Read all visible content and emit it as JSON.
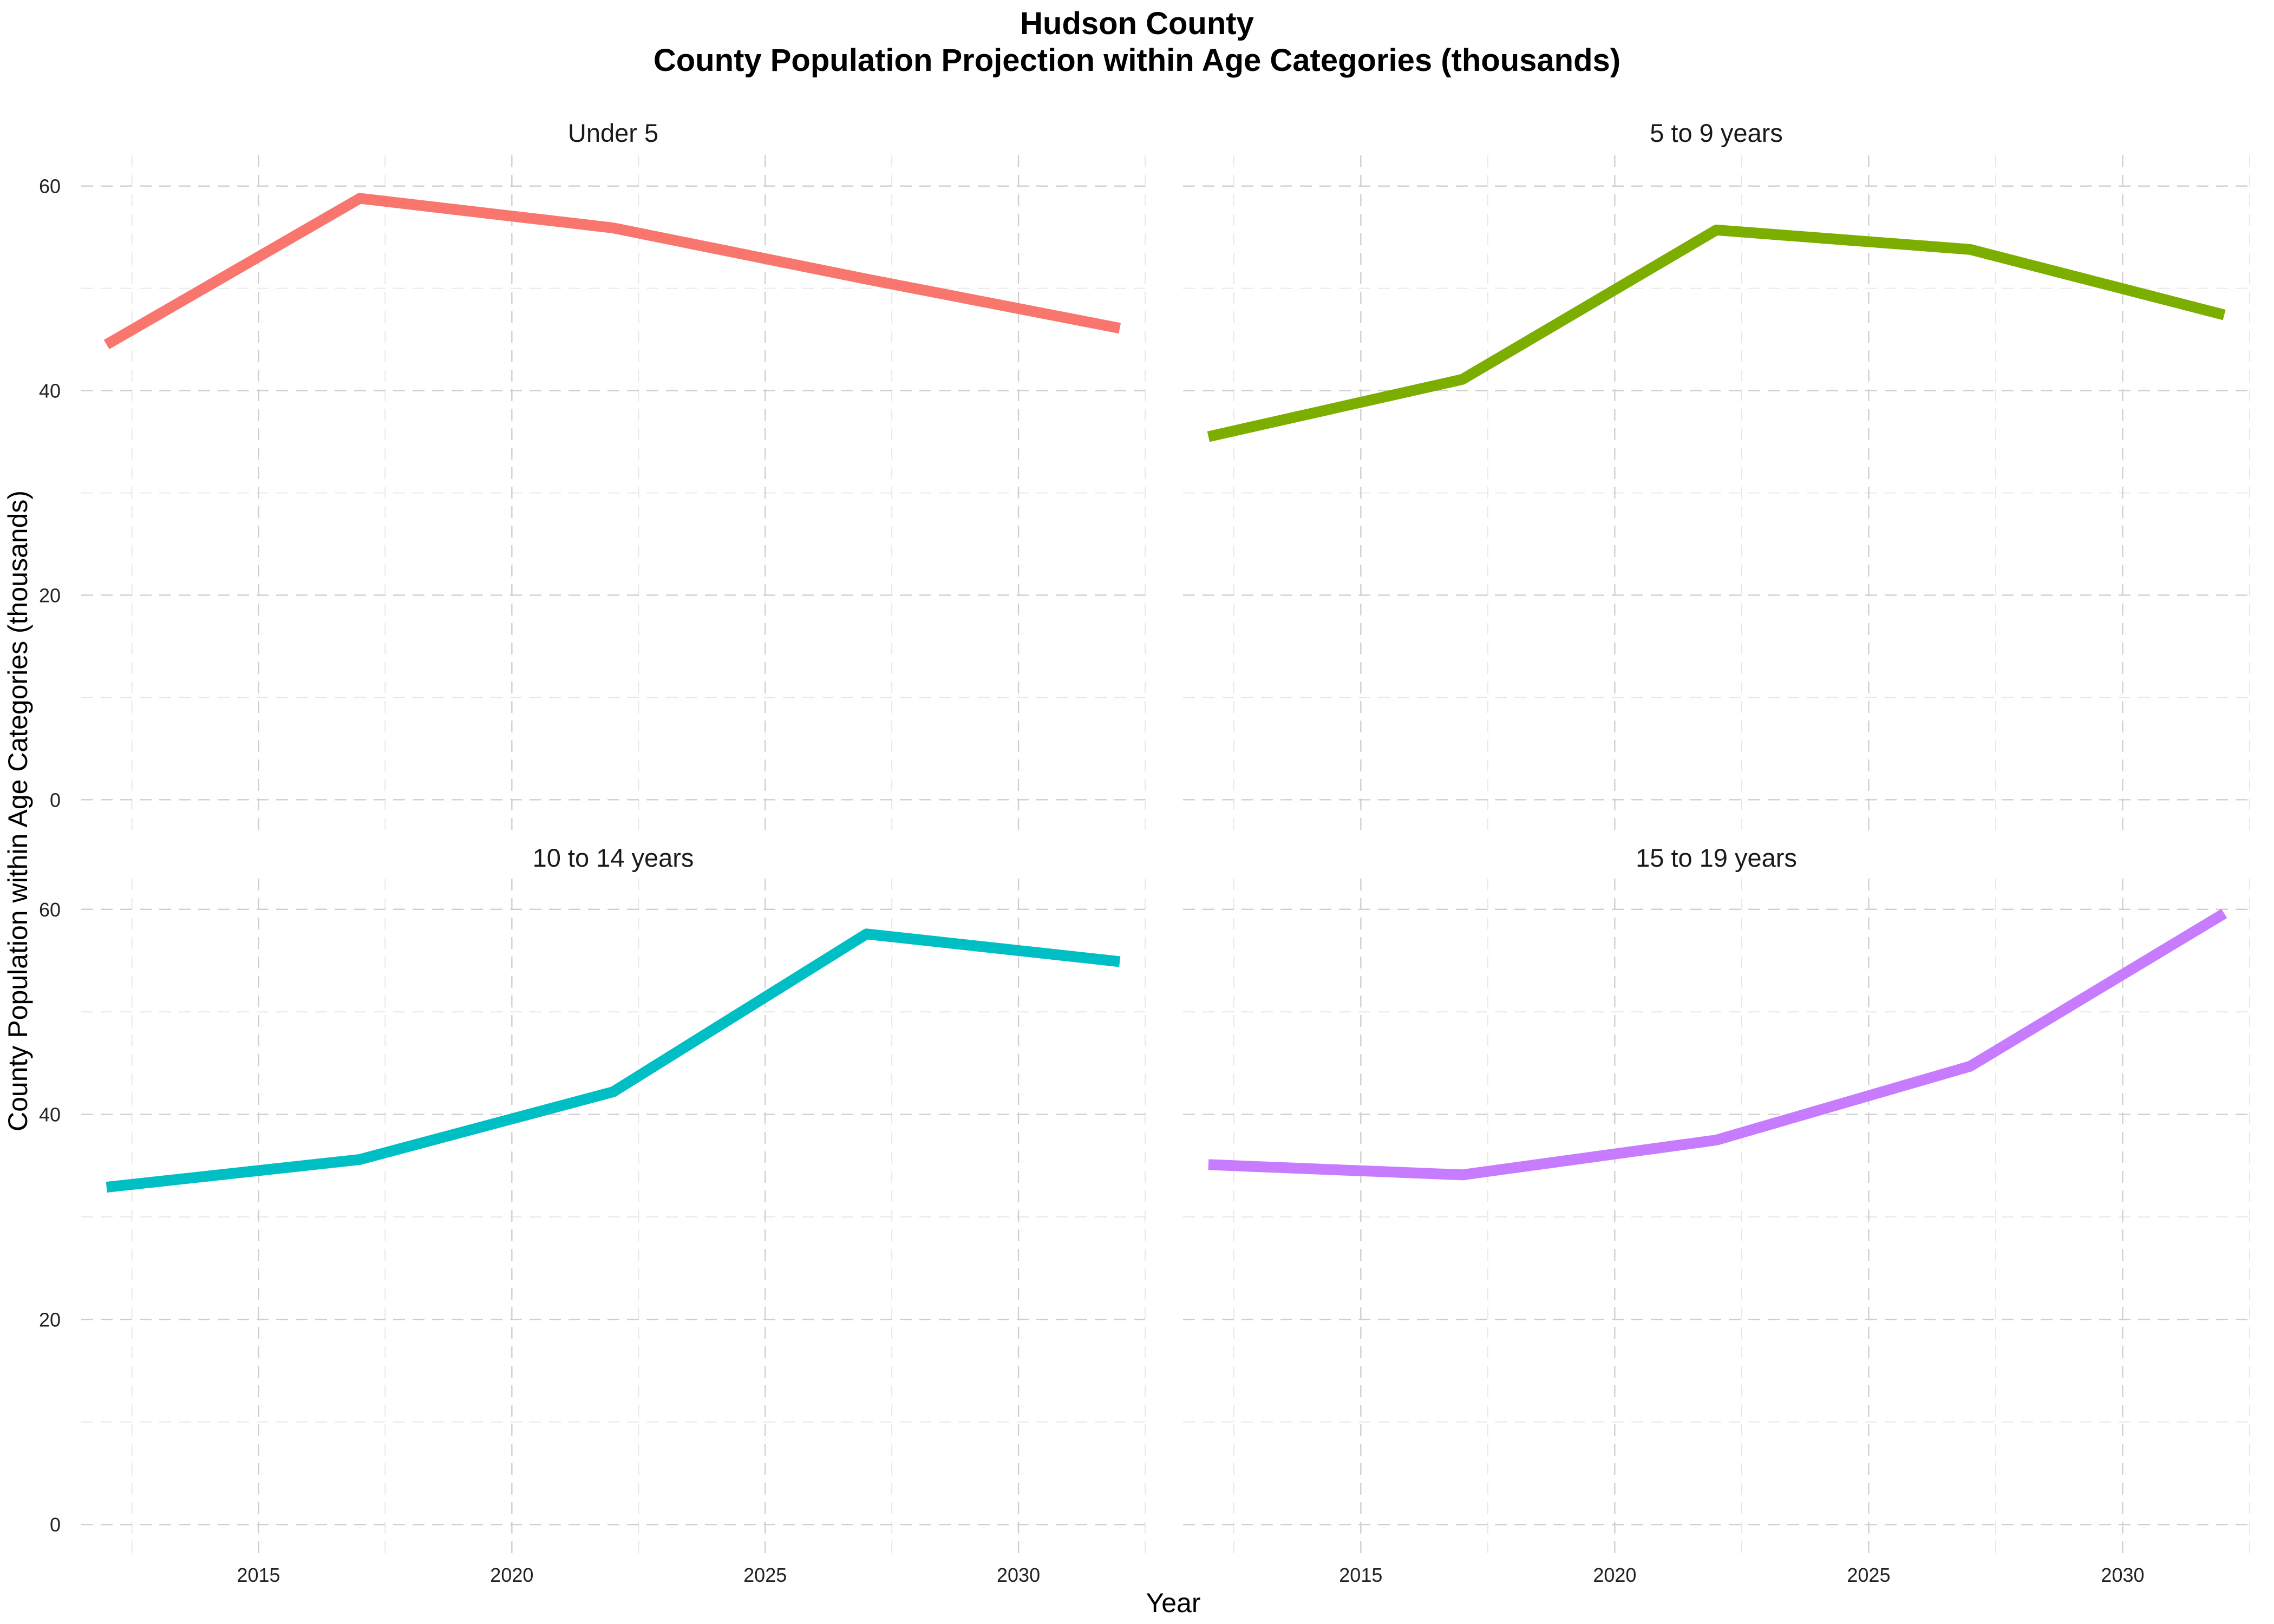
{
  "title": {
    "line1": "Hudson County",
    "line2": "County Population Projection within Age Categories (thousands)"
  },
  "chart_data": {
    "type": "line",
    "layout": "facet-grid-2x2",
    "title": "Hudson County\nCounty Population Projection within Age Categories (thousands)",
    "xlabel": "Year",
    "ylabel": "County Population within Age Categories (thousands)",
    "xlim": [
      2011.5,
      2032.5
    ],
    "ylim": [
      -3,
      63
    ],
    "x_ticks": [
      2015,
      2020,
      2025,
      2030
    ],
    "x_tick_labels": [
      "2015",
      "2020",
      "2025",
      "2030"
    ],
    "y_ticks": [
      0,
      20,
      40,
      60
    ],
    "y_tick_labels": [
      "0",
      "20",
      "40",
      "60"
    ],
    "grid": true,
    "legend": "none",
    "panels": [
      {
        "strip": "Under 5",
        "color": "#F8766D",
        "x": [
          2012,
          2017,
          2022,
          2027,
          2032
        ],
        "values": [
          44.5,
          58.8,
          55.9,
          50.9,
          46.1
        ]
      },
      {
        "strip": "5 to 9 years",
        "color": "#7CAE00",
        "x": [
          2012,
          2017,
          2022,
          2027,
          2032
        ],
        "values": [
          35.5,
          41.1,
          55.7,
          53.8,
          47.4
        ]
      },
      {
        "strip": "10 to 14 years",
        "color": "#00BFC4",
        "x": [
          2012,
          2017,
          2022,
          2027,
          2032
        ],
        "values": [
          32.9,
          35.6,
          42.2,
          57.6,
          54.9
        ]
      },
      {
        "strip": "15 to 19 years",
        "color": "#C77CFF",
        "x": [
          2012,
          2017,
          2022,
          2027,
          2032
        ],
        "values": [
          35.1,
          34.1,
          37.5,
          44.7,
          59.6
        ]
      }
    ]
  }
}
